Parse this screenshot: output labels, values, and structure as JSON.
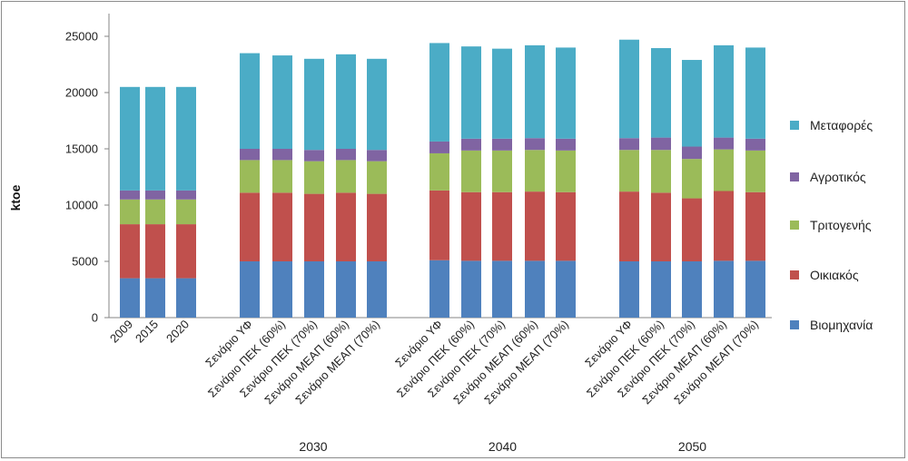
{
  "chart_data": {
    "type": "bar",
    "stacked": true,
    "ylabel": "ktoe",
    "ylim": [
      0,
      25000
    ],
    "yticks": [
      0,
      5000,
      10000,
      15000,
      20000,
      25000
    ],
    "grid": false,
    "legend_position": "right",
    "categories": [
      "2009",
      "2015",
      "2020",
      "Σενάριο ΥΦ",
      "Σενάριο ΠΕΚ (60%)",
      "Σενάριο ΠΕΚ (70%)",
      "Σενάριο ΜΕΑΠ (60%)",
      "Σενάριο ΜΕΑΠ (70%)",
      "Σενάριο ΥΦ",
      "Σενάριο ΠΕΚ (60%)",
      "Σενάριο ΠΕΚ (70%)",
      "Σενάριο ΜΕΑΠ (60%)",
      "Σενάριο ΜΕΑΠ (70%)",
      "Σενάριο ΥΦ",
      "Σενάριο ΠΕΚ (60%)",
      "Σενάριο ΠΕΚ (70%)",
      "Σενάριο ΜΕΑΠ (60%)",
      "Σενάριο ΜΕΑΠ (70%)"
    ],
    "groups": [
      {
        "label": "",
        "start": 0,
        "count": 3
      },
      {
        "label": "2030",
        "start": 3,
        "count": 5
      },
      {
        "label": "2040",
        "start": 8,
        "count": 5
      },
      {
        "label": "2050",
        "start": 13,
        "count": 5
      }
    ],
    "series": [
      {
        "name": "Βιομηχανία",
        "color": "#4f81bd",
        "values": [
          3500,
          3500,
          3500,
          5000,
          5000,
          5000,
          5000,
          5000,
          5100,
          5050,
          5050,
          5050,
          5050,
          5000,
          5000,
          5000,
          5050,
          5050
        ]
      },
      {
        "name": "Οικιακός",
        "color": "#c0504d",
        "values": [
          4800,
          4800,
          4800,
          6100,
          6100,
          6000,
          6100,
          6000,
          6200,
          6100,
          6100,
          6150,
          6100,
          6200,
          6100,
          5600,
          6200,
          6100
        ]
      },
      {
        "name": "Τριτογενής",
        "color": "#9bbb59",
        "values": [
          2200,
          2200,
          2200,
          2900,
          2900,
          2900,
          2900,
          2900,
          3300,
          3700,
          3700,
          3700,
          3700,
          3700,
          3800,
          3500,
          3700,
          3700
        ]
      },
      {
        "name": "Αγροτικός",
        "color": "#8064a2",
        "values": [
          800,
          800,
          800,
          1000,
          1000,
          1000,
          1000,
          1000,
          1050,
          1050,
          1050,
          1050,
          1050,
          1050,
          1100,
          1100,
          1050,
          1050
        ]
      },
      {
        "name": "Μεταφορές",
        "color": "#4bacc6",
        "values": [
          9200,
          9200,
          9200,
          8500,
          8300,
          8100,
          8400,
          8100,
          8750,
          8200,
          8000,
          8250,
          8100,
          8750,
          7950,
          7700,
          8200,
          8100
        ]
      }
    ]
  }
}
